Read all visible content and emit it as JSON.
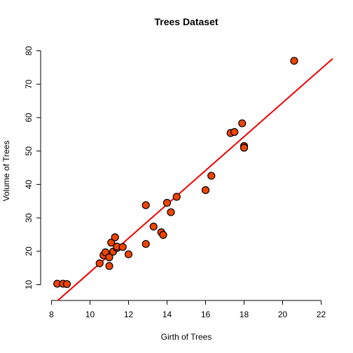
{
  "chart_data": {
    "type": "scatter",
    "title": "Trees Dataset",
    "xlabel": "Girth of Trees",
    "ylabel": "Volume of Trees",
    "xlim": [
      8,
      22
    ],
    "ylim": [
      10,
      80
    ],
    "xticks": [
      8,
      10,
      12,
      14,
      16,
      18,
      20,
      22
    ],
    "yticks": [
      10,
      20,
      30,
      40,
      50,
      60,
      70,
      80
    ],
    "point_color": "#ee4400",
    "line_color": "#ee0000",
    "regression": {
      "intercept": -36.94,
      "slope": 5.07
    },
    "series": [
      {
        "x": [
          8.3,
          8.6,
          8.8,
          10.5,
          10.7,
          10.8,
          11.0,
          11.0,
          11.1,
          11.2,
          11.3,
          11.4,
          11.4,
          11.7,
          12.0,
          12.9,
          12.9,
          13.3,
          13.7,
          13.8,
          14.0,
          14.2,
          14.5,
          16.0,
          16.3,
          17.3,
          17.5,
          17.9,
          18.0,
          18.0,
          20.6
        ],
        "y": [
          10.3,
          10.3,
          10.2,
          16.4,
          18.8,
          19.7,
          15.6,
          18.2,
          22.6,
          19.9,
          24.2,
          21.0,
          21.4,
          21.3,
          19.1,
          22.2,
          33.8,
          27.4,
          25.7,
          24.9,
          34.5,
          31.7,
          36.3,
          38.3,
          42.6,
          55.4,
          55.7,
          58.3,
          51.5,
          51.0,
          77.0
        ]
      }
    ]
  }
}
